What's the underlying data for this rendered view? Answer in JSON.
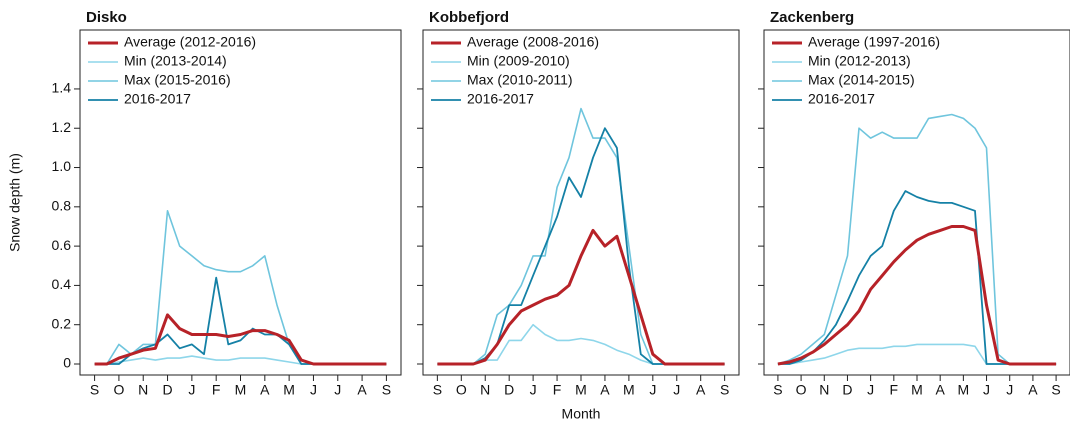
{
  "chart_data": [
    {
      "type": "line",
      "title": "Disko",
      "ylabel": "Snow depth (m)",
      "x": [
        0,
        0.5,
        1,
        1.5,
        2,
        2.5,
        3,
        3.5,
        4,
        4.5,
        5,
        5.5,
        6,
        6.5,
        7,
        7.5,
        8,
        8.5,
        9,
        9.5,
        10,
        10.5,
        11,
        11.5,
        12
      ],
      "xlim": [
        -0.6,
        12.6
      ],
      "xticks": [
        {
          "value": 0,
          "label": "S"
        },
        {
          "value": 1,
          "label": "O"
        },
        {
          "value": 2,
          "label": "N"
        },
        {
          "value": 3,
          "label": "D"
        },
        {
          "value": 4,
          "label": "J"
        },
        {
          "value": 5,
          "label": "F"
        },
        {
          "value": 6,
          "label": "M"
        },
        {
          "value": 7,
          "label": "A"
        },
        {
          "value": 8,
          "label": "M"
        },
        {
          "value": 9,
          "label": "J"
        },
        {
          "value": 10,
          "label": "J"
        },
        {
          "value": 11,
          "label": "A"
        },
        {
          "value": 12,
          "label": "S"
        }
      ],
      "ylim": [
        -0.056,
        1.7
      ],
      "yticks": [
        0,
        0.2,
        0.4,
        0.6,
        0.8,
        {
          "value": 1,
          "label": "1.0"
        },
        1.2,
        1.4
      ],
      "show_ytick_labels": true,
      "series": [
        {
          "name": "Average (2012-2016)",
          "color": "#b72228",
          "width": 3,
          "values": [
            0,
            0,
            0.03,
            0.05,
            0.07,
            0.08,
            0.25,
            0.18,
            0.15,
            0.15,
            0.15,
            0.14,
            0.15,
            0.17,
            0.17,
            0.15,
            0.12,
            0.02,
            0,
            0,
            0,
            0,
            0,
            0,
            0
          ]
        },
        {
          "name": "Min (2013-2014)",
          "color": "#8ed6ea",
          "width": 1.6,
          "values": [
            0,
            0,
            0.01,
            0.02,
            0.03,
            0.02,
            0.03,
            0.03,
            0.04,
            0.03,
            0.02,
            0.02,
            0.03,
            0.03,
            0.03,
            0.02,
            0.01,
            0,
            0,
            0,
            0,
            0,
            0,
            0,
            0
          ]
        },
        {
          "name": "Max (2015-2016)",
          "color": "#6fc5dd",
          "width": 1.6,
          "values": [
            0,
            0,
            0.1,
            0.05,
            0.1,
            0.1,
            0.78,
            0.6,
            0.55,
            0.5,
            0.48,
            0.47,
            0.47,
            0.5,
            0.55,
            0.3,
            0.1,
            0,
            0,
            0,
            0,
            0,
            0,
            0,
            0
          ]
        },
        {
          "name": "2016-2017",
          "color": "#1581a6",
          "width": 1.8,
          "values": [
            0,
            0,
            0,
            0.05,
            0.08,
            0.1,
            0.15,
            0.08,
            0.1,
            0.05,
            0.44,
            0.1,
            0.12,
            0.18,
            0.15,
            0.15,
            0.1,
            0,
            0,
            0,
            0,
            0,
            0,
            0,
            0
          ]
        }
      ]
    },
    {
      "type": "line",
      "title": "Kobbefjord",
      "xlabel": "Month",
      "x": [
        0,
        0.5,
        1,
        1.5,
        2,
        2.5,
        3,
        3.5,
        4,
        4.5,
        5,
        5.5,
        6,
        6.5,
        7,
        7.5,
        8,
        8.5,
        9,
        9.5,
        10,
        10.5,
        11,
        11.5,
        12
      ],
      "xlim": [
        -0.6,
        12.6
      ],
      "xticks": [
        {
          "value": 0,
          "label": "S"
        },
        {
          "value": 1,
          "label": "O"
        },
        {
          "value": 2,
          "label": "N"
        },
        {
          "value": 3,
          "label": "D"
        },
        {
          "value": 4,
          "label": "J"
        },
        {
          "value": 5,
          "label": "F"
        },
        {
          "value": 6,
          "label": "M"
        },
        {
          "value": 7,
          "label": "A"
        },
        {
          "value": 8,
          "label": "M"
        },
        {
          "value": 9,
          "label": "J"
        },
        {
          "value": 10,
          "label": "J"
        },
        {
          "value": 11,
          "label": "A"
        },
        {
          "value": 12,
          "label": "S"
        }
      ],
      "ylim": [
        -0.056,
        1.7
      ],
      "yticks": [
        0,
        0.2,
        0.4,
        0.6,
        0.8,
        1,
        1.2,
        1.4
      ],
      "show_ytick_labels": false,
      "series": [
        {
          "name": "Average (2008-2016)",
          "color": "#b72228",
          "width": 3,
          "values": [
            0,
            0,
            0,
            0,
            0.02,
            0.1,
            0.2,
            0.27,
            0.3,
            0.33,
            0.35,
            0.4,
            0.55,
            0.68,
            0.6,
            0.65,
            0.45,
            0.25,
            0.05,
            0,
            0,
            0,
            0,
            0,
            0
          ]
        },
        {
          "name": "Min (2009-2010)",
          "color": "#8ed6ea",
          "width": 1.6,
          "values": [
            0,
            0,
            0,
            0,
            0.02,
            0.02,
            0.12,
            0.12,
            0.2,
            0.15,
            0.12,
            0.12,
            0.13,
            0.12,
            0.1,
            0.07,
            0.05,
            0.02,
            0,
            0,
            0,
            0,
            0,
            0,
            0
          ]
        },
        {
          "name": "Max (2010-2011)",
          "color": "#6fc5dd",
          "width": 1.6,
          "values": [
            0,
            0,
            0,
            0,
            0.05,
            0.25,
            0.3,
            0.4,
            0.55,
            0.55,
            0.9,
            1.05,
            1.3,
            1.15,
            1.15,
            1.05,
            0.6,
            0.15,
            0,
            0,
            0,
            0,
            0,
            0,
            0
          ]
        },
        {
          "name": "2016-2017",
          "color": "#1581a6",
          "width": 1.8,
          "values": [
            0,
            0,
            0,
            0,
            0.03,
            0.1,
            0.3,
            0.3,
            0.45,
            0.6,
            0.75,
            0.95,
            0.85,
            1.05,
            1.2,
            1.1,
            0.5,
            0.05,
            0,
            0,
            0,
            0,
            0,
            0,
            0
          ]
        }
      ]
    },
    {
      "type": "line",
      "title": "Zackenberg",
      "x": [
        0,
        0.5,
        1,
        1.5,
        2,
        2.5,
        3,
        3.5,
        4,
        4.5,
        5,
        5.5,
        6,
        6.5,
        7,
        7.5,
        8,
        8.5,
        9,
        9.5,
        10,
        10.5,
        11,
        11.5,
        12
      ],
      "xlim": [
        -0.6,
        12.6
      ],
      "xticks": [
        {
          "value": 0,
          "label": "S"
        },
        {
          "value": 1,
          "label": "O"
        },
        {
          "value": 2,
          "label": "N"
        },
        {
          "value": 3,
          "label": "D"
        },
        {
          "value": 4,
          "label": "J"
        },
        {
          "value": 5,
          "label": "F"
        },
        {
          "value": 6,
          "label": "M"
        },
        {
          "value": 7,
          "label": "A"
        },
        {
          "value": 8,
          "label": "M"
        },
        {
          "value": 9,
          "label": "J"
        },
        {
          "value": 10,
          "label": "J"
        },
        {
          "value": 11,
          "label": "A"
        },
        {
          "value": 12,
          "label": "S"
        }
      ],
      "ylim": [
        -0.056,
        1.7
      ],
      "yticks": [
        0,
        0.2,
        0.4,
        0.6,
        0.8,
        1,
        1.2,
        1.4
      ],
      "show_ytick_labels": false,
      "series": [
        {
          "name": "Average (1997-2016)",
          "color": "#b72228",
          "width": 3,
          "values": [
            0,
            0.01,
            0.03,
            0.06,
            0.1,
            0.15,
            0.2,
            0.27,
            0.38,
            0.45,
            0.52,
            0.58,
            0.63,
            0.66,
            0.68,
            0.7,
            0.7,
            0.68,
            0.3,
            0.02,
            0,
            0,
            0,
            0,
            0
          ]
        },
        {
          "name": "Min (2012-2013)",
          "color": "#8ed6ea",
          "width": 1.6,
          "values": [
            0,
            0,
            0.01,
            0.02,
            0.03,
            0.05,
            0.07,
            0.08,
            0.08,
            0.08,
            0.09,
            0.09,
            0.1,
            0.1,
            0.1,
            0.1,
            0.1,
            0.09,
            0,
            0,
            0,
            0,
            0,
            0,
            0
          ]
        },
        {
          "name": "Max (2014-2015)",
          "color": "#6fc5dd",
          "width": 1.6,
          "values": [
            0,
            0.02,
            0.05,
            0.1,
            0.15,
            0.35,
            0.55,
            1.2,
            1.15,
            1.18,
            1.15,
            1.15,
            1.15,
            1.25,
            1.26,
            1.27,
            1.25,
            1.2,
            1.1,
            0.05,
            0,
            0,
            0,
            0,
            0
          ]
        },
        {
          "name": "2016-2017",
          "color": "#1581a6",
          "width": 1.8,
          "values": [
            0,
            0,
            0.02,
            0.06,
            0.12,
            0.2,
            0.32,
            0.45,
            0.55,
            0.6,
            0.78,
            0.88,
            0.85,
            0.83,
            0.82,
            0.82,
            0.8,
            0.78,
            0,
            0,
            0,
            0,
            0,
            0,
            0
          ]
        }
      ]
    }
  ]
}
